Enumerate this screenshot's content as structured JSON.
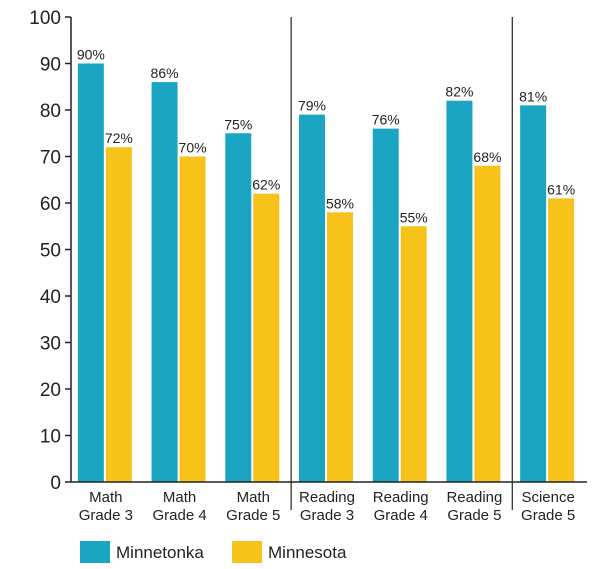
{
  "chart_data": {
    "type": "bar",
    "title": "",
    "xlabel": "",
    "ylabel": "",
    "ylim": [
      0,
      100
    ],
    "yticks": [
      0,
      10,
      20,
      30,
      40,
      50,
      60,
      70,
      80,
      90,
      100
    ],
    "grid": false,
    "legend_position": "bottom-left",
    "categories": [
      [
        "Math",
        "Grade 3"
      ],
      [
        "Math",
        "Grade 4"
      ],
      [
        "Math",
        "Grade 5"
      ],
      [
        "Reading",
        "Grade 3"
      ],
      [
        "Reading",
        "Grade 4"
      ],
      [
        "Reading",
        "Grade 5"
      ],
      [
        "Science",
        "Grade 5"
      ]
    ],
    "group_separators_after": [
      2,
      5
    ],
    "series": [
      {
        "name": "Minnetonka",
        "color": "#1aa6c3",
        "values": [
          90,
          86,
          75,
          79,
          76,
          82,
          81
        ],
        "labels": [
          "90%",
          "86%",
          "75%",
          "79%",
          "76%",
          "82%",
          "81%"
        ]
      },
      {
        "name": "Minnesota",
        "color": "#f7c21a",
        "values": [
          72,
          70,
          62,
          58,
          55,
          68,
          61
        ],
        "labels": [
          "72%",
          "70%",
          "62%",
          "58%",
          "55%",
          "68%",
          "61%"
        ]
      }
    ]
  }
}
